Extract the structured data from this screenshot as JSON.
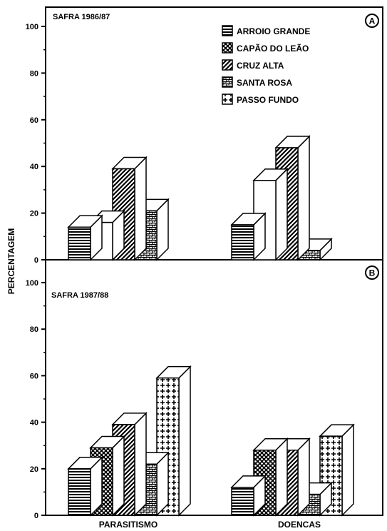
{
  "y_axis_label": "PERCENTAGEM",
  "colors": {
    "ink": "#000000",
    "paper": "#ffffff"
  },
  "legend": [
    {
      "name": "ARROIO GRANDE",
      "pattern": "hstripe"
    },
    {
      "name": "CAPÃO DO LEÃO",
      "pattern": "dots"
    },
    {
      "name": "CRUZ ALTA",
      "pattern": "diag"
    },
    {
      "name": "SANTA ROSA",
      "pattern": "brick"
    },
    {
      "name": "PASSO FUNDO",
      "pattern": "cross"
    }
  ],
  "chart_data": [
    {
      "type": "bar",
      "title": "SAFRA 1986/87",
      "panel_label": "A",
      "categories": [
        "PARASITISMO",
        "DOENCAS"
      ],
      "ylabel": "PERCENTAGEM",
      "ylim": [
        0,
        100
      ],
      "yticks": [
        0,
        20,
        40,
        60,
        80,
        100
      ],
      "series": [
        {
          "name": "ARROIO GRANDE",
          "values": [
            14,
            15
          ]
        },
        {
          "name": "CAPÃO DO LEÃO",
          "values": [
            16,
            34
          ]
        },
        {
          "name": "CRUZ ALTA",
          "values": [
            39,
            48
          ]
        },
        {
          "name": "SANTA ROSA",
          "values": [
            21,
            4
          ]
        },
        {
          "name": "PASSO FUNDO",
          "values": [
            null,
            null
          ]
        }
      ],
      "x_axis_labels_shown": false
    },
    {
      "type": "bar",
      "title": "SAFRA 1987/88",
      "panel_label": "B",
      "categories": [
        "PARASITISMO",
        "DOENCAS"
      ],
      "ylabel": "PERCENTAGEM",
      "ylim": [
        0,
        100
      ],
      "yticks": [
        0,
        20,
        40,
        60,
        80,
        100
      ],
      "series": [
        {
          "name": "ARROIO GRANDE",
          "values": [
            20,
            12
          ]
        },
        {
          "name": "CAPÃO DO LEÃO",
          "values": [
            29,
            28
          ]
        },
        {
          "name": "CRUZ ALTA",
          "values": [
            39,
            28
          ]
        },
        {
          "name": "SANTA ROSA",
          "values": [
            22,
            9
          ]
        },
        {
          "name": "PASSO FUNDO",
          "values": [
            59,
            34
          ]
        }
      ],
      "x_axis_labels_shown": true
    }
  ]
}
